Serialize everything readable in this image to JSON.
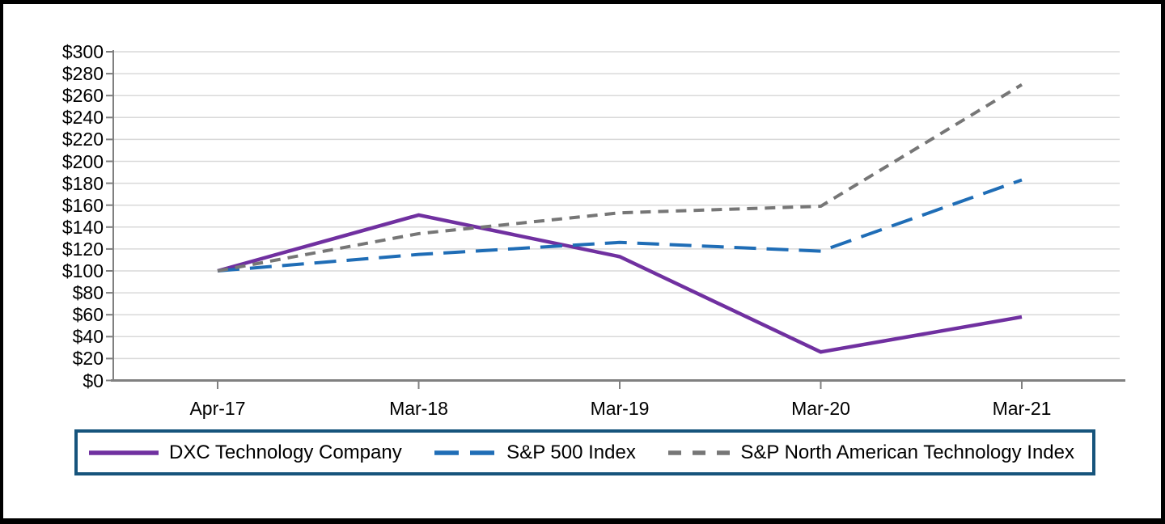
{
  "chart_data": {
    "type": "line",
    "title": "",
    "categories": [
      "Apr-17",
      "Mar-18",
      "Mar-19",
      "Mar-20",
      "Mar-21"
    ],
    "series": [
      {
        "name": "DXC Technology Company",
        "color": "#7030A0",
        "line_style": "solid",
        "values": [
          100,
          151,
          113,
          26,
          58
        ]
      },
      {
        "name": "S&P 500 Index",
        "color": "#1F6DB6",
        "line_style": "long-dash",
        "values": [
          100,
          115,
          126,
          118,
          183
        ]
      },
      {
        "name": "S&P North American Technology Index",
        "color": "#767676",
        "line_style": "short-dash",
        "values": [
          100,
          134,
          153,
          159,
          270
        ]
      }
    ],
    "xlabel": "",
    "ylabel": "",
    "ylim": [
      0,
      300
    ],
    "ytick_step": 20,
    "y_tick_labels": [
      "$300",
      "$280",
      "$260",
      "$240",
      "$220",
      "$200",
      "$180",
      "$160",
      "$140",
      "$120",
      "$100",
      "$80",
      "$60",
      "$40",
      "$20",
      "$0"
    ],
    "grid": "horizontal",
    "gridline_color": "#D9D9D9",
    "axis_color": "#808080",
    "legend_position": "bottom",
    "legend_border_color": "#16547C",
    "frame_color": "#000000"
  }
}
